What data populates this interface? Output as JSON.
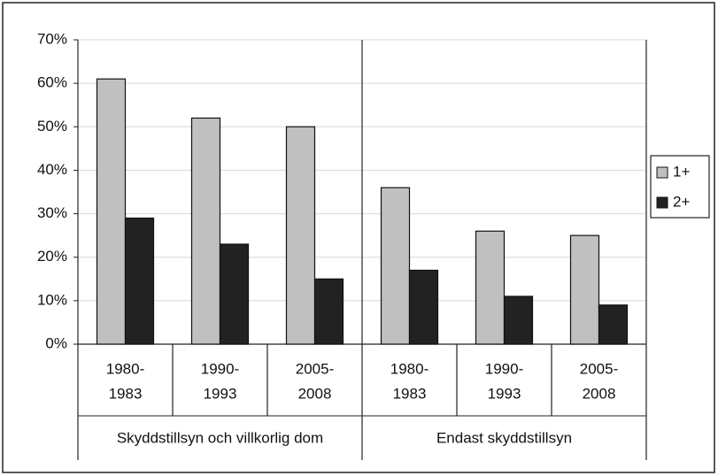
{
  "chart_data": {
    "type": "bar",
    "categories": [
      [
        "1980-",
        "1983"
      ],
      [
        "1990-",
        "1993"
      ],
      [
        "2005-",
        "2008"
      ],
      [
        "1980-",
        "1983"
      ],
      [
        "1990-",
        "1993"
      ],
      [
        "2005-",
        "2008"
      ]
    ],
    "groups": [
      "Skyddstillsyn och villkorlig dom",
      "Endast skyddstillsyn"
    ],
    "series": [
      {
        "name": "1+",
        "color": "#c0c0c0",
        "values": [
          61,
          52,
          50,
          36,
          26,
          25
        ]
      },
      {
        "name": "2+",
        "color": "#222222",
        "values": [
          29,
          23,
          15,
          17,
          11,
          9
        ]
      }
    ],
    "ylim": [
      0,
      70
    ],
    "yticks": [
      {
        "value": 0,
        "label": "0%"
      },
      {
        "value": 10,
        "label": "10%"
      },
      {
        "value": 20,
        "label": "20%"
      },
      {
        "value": 30,
        "label": "30%"
      },
      {
        "value": 40,
        "label": "40%"
      },
      {
        "value": 50,
        "label": "50%"
      },
      {
        "value": 60,
        "label": "60%"
      },
      {
        "value": 70,
        "label": "70%"
      }
    ],
    "grid": true,
    "legend": "right"
  }
}
